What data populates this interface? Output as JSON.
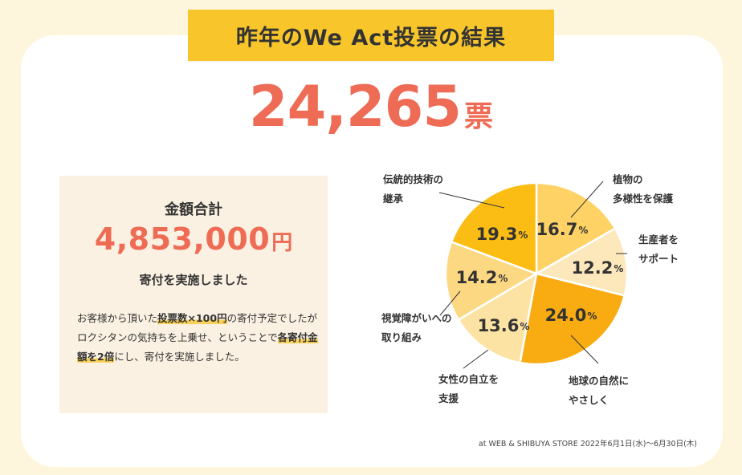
{
  "title": "昨年のWe Act投票の結果",
  "votes": {
    "number": "24,265",
    "unit": "票"
  },
  "donation": {
    "label": "金額合計",
    "amount": "4,853,000",
    "unit": "円",
    "subtitle": "寄付を実施しました",
    "note": {
      "p1": "お客様から頂いた",
      "h1": "投票数×100円",
      "p2": "の寄付予定でしたがロクシタンの気持ちを上乗せ、ということで",
      "h2": "各寄付金額を2倍",
      "p3": "にし、寄付を実施しました。"
    }
  },
  "footnote": "at WEB & SHIBUYA STORE 2022年6月1日(水)〜6月30日(木)",
  "chart_data": {
    "type": "pie",
    "slices": [
      {
        "label_lines": [
          "植物の",
          "多様性を保護"
        ],
        "value": 16.7,
        "value_text": "16.7",
        "unit": "%",
        "color": "#fed264"
      },
      {
        "label_lines": [
          "生産者を",
          "サポート"
        ],
        "value": 12.2,
        "value_text": "12.2",
        "unit": "%",
        "color": "#fde8bc"
      },
      {
        "label_lines": [
          "地球の自然に",
          "やさしく"
        ],
        "value": 24.0,
        "value_text": "24.0",
        "unit": "%",
        "color": "#f9ac12"
      },
      {
        "label_lines": [
          "女性の自立を",
          "支援"
        ],
        "value": 13.6,
        "value_text": "13.6",
        "unit": "%",
        "color": "#fde3a3"
      },
      {
        "label_lines": [
          "視覚障がいへの",
          "取り組み"
        ],
        "value": 14.2,
        "value_text": "14.2",
        "unit": "%",
        "color": "#fdd882"
      },
      {
        "label_lines": [
          "伝統的技術の",
          "継承"
        ],
        "value": 19.3,
        "value_text": "19.3",
        "unit": "%",
        "color": "#fbbd14"
      }
    ]
  }
}
